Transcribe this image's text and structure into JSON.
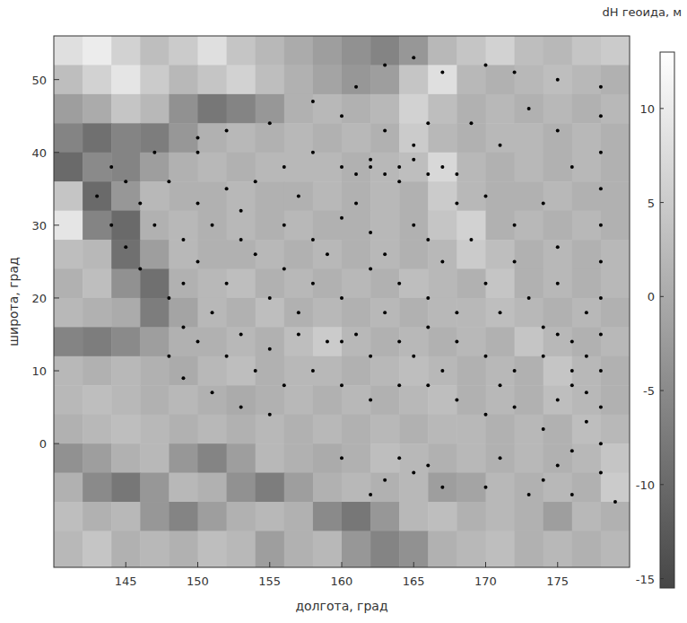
{
  "chart_data": {
    "type": "heatmap",
    "x_label": "долгота, град",
    "y_label": "широта, град",
    "xlim": [
      140,
      180
    ],
    "ylim": [
      -17,
      56
    ],
    "xticks": [
      145,
      150,
      155,
      160,
      165,
      170,
      175
    ],
    "yticks": [
      0,
      10,
      20,
      30,
      40,
      50
    ],
    "x_edges": [
      140,
      142,
      144,
      146,
      148,
      150,
      152,
      154,
      156,
      158,
      160,
      162,
      164,
      166,
      168,
      170,
      172,
      174,
      176,
      178,
      180
    ],
    "y_edges": [
      56,
      52,
      48,
      44,
      40,
      36,
      32,
      28,
      24,
      20,
      16,
      12,
      8,
      4,
      0,
      -4,
      -8,
      -12,
      -17
    ],
    "cells": [
      [
        8,
        10,
        6,
        3,
        5,
        8,
        4,
        2,
        0,
        -2,
        -4,
        -6,
        -3,
        2,
        4,
        6,
        3,
        2,
        4,
        5
      ],
      [
        3,
        6,
        9,
        5,
        2,
        4,
        6,
        3,
        1,
        -1,
        -3,
        -2,
        4,
        8,
        2,
        1,
        2,
        3,
        2,
        1
      ],
      [
        -2,
        0,
        4,
        2,
        -4,
        -8,
        -6,
        -3,
        1,
        2,
        1,
        2,
        6,
        3,
        1,
        2,
        1,
        2,
        1,
        2
      ],
      [
        -6,
        -9,
        -6,
        -7,
        -3,
        1,
        2,
        1,
        2,
        1,
        2,
        1,
        5,
        2,
        1,
        2,
        2,
        1,
        2,
        1
      ],
      [
        -10,
        -5,
        -6,
        -2,
        1,
        2,
        1,
        2,
        2,
        2,
        1,
        2,
        3,
        7,
        2,
        1,
        2,
        1,
        2,
        1
      ],
      [
        4,
        -10,
        -3,
        2,
        1,
        1,
        2,
        1,
        1,
        2,
        1,
        2,
        1,
        5,
        2,
        1,
        1,
        2,
        1,
        1
      ],
      [
        9,
        -6,
        -10,
        1,
        2,
        1,
        2,
        1,
        2,
        1,
        1,
        2,
        1,
        4,
        6,
        1,
        2,
        1,
        2,
        1
      ],
      [
        3,
        2,
        -9,
        -2,
        2,
        1,
        1,
        2,
        1,
        2,
        1,
        2,
        1,
        2,
        5,
        3,
        1,
        2,
        1,
        2
      ],
      [
        1,
        3,
        -4,
        -9,
        1,
        2,
        3,
        1,
        2,
        1,
        2,
        1,
        3,
        2,
        1,
        4,
        1,
        2,
        1,
        2
      ],
      [
        2,
        1,
        0,
        -7,
        -1,
        2,
        1,
        3,
        1,
        2,
        1,
        2,
        1,
        2,
        2,
        3,
        2,
        1,
        2,
        1
      ],
      [
        -6,
        -7,
        -5,
        -2,
        1,
        1,
        2,
        1,
        3,
        5,
        2,
        1,
        2,
        1,
        2,
        1,
        4,
        2,
        1,
        2
      ],
      [
        2,
        1,
        2,
        1,
        0,
        2,
        3,
        1,
        2,
        2,
        1,
        2,
        3,
        2,
        1,
        2,
        1,
        4,
        2,
        1
      ],
      [
        2,
        3,
        2,
        1,
        2,
        1,
        0,
        1,
        2,
        1,
        2,
        1,
        2,
        3,
        1,
        2,
        1,
        3,
        2,
        1
      ],
      [
        1,
        2,
        3,
        2,
        1,
        2,
        1,
        2,
        1,
        2,
        1,
        2,
        1,
        2,
        2,
        1,
        2,
        1,
        3,
        2
      ],
      [
        -4,
        -2,
        1,
        2,
        -3,
        -6,
        -2,
        2,
        1,
        0,
        1,
        3,
        2,
        1,
        2,
        1,
        2,
        1,
        2,
        4
      ],
      [
        1,
        -5,
        -8,
        -3,
        2,
        1,
        -4,
        -7,
        -2,
        1,
        2,
        1,
        2,
        -2,
        -1,
        2,
        1,
        2,
        1,
        5
      ],
      [
        3,
        1,
        2,
        -3,
        -6,
        -2,
        1,
        2,
        1,
        -5,
        -8,
        -3,
        2,
        3,
        1,
        2,
        1,
        -2,
        2,
        1
      ],
      [
        2,
        4,
        1,
        2,
        1,
        3,
        2,
        -2,
        1,
        2,
        -3,
        -6,
        -4,
        1,
        2,
        3,
        1,
        2,
        1,
        2
      ]
    ],
    "colorbar_label": "dH геоида, м",
    "colorbar_range": [
      -15.5,
      13
    ],
    "colorbar_ticks": [
      -15,
      -10,
      -5,
      0,
      5,
      10
    ],
    "points": {
      "color": "#000000",
      "marker": "circle",
      "x": [
        150,
        152,
        155,
        158,
        161,
        163,
        165,
        167,
        170,
        172,
        175,
        178,
        144,
        143,
        144,
        145,
        146,
        148,
        149,
        148,
        149,
        151,
        153,
        155,
        160,
        163,
        165,
        167,
        170,
        173,
        176,
        179,
        162,
        175,
        178,
        178,
        178,
        178,
        178,
        178,
        178,
        178,
        178,
        178,
        178,
        161,
        162,
        163,
        164,
        165,
        166,
        164,
        162,
        160,
        167,
        168,
        165,
        163,
        166,
        160,
        158,
        156,
        154,
        152,
        150,
        148,
        147,
        150,
        153,
        156,
        158,
        160,
        162,
        165,
        168,
        170,
        172,
        174,
        176,
        175,
        173,
        171,
        169,
        175,
        172,
        170,
        168,
        166,
        164,
        162,
        160,
        158,
        156,
        154,
        152,
        150,
        151,
        153,
        155,
        157,
        159,
        160,
        161,
        162,
        164,
        166,
        168,
        170,
        172,
        174,
        176,
        177,
        176,
        175,
        177,
        176,
        174,
        172,
        170,
        168,
        166,
        164,
        162,
        160,
        158,
        156,
        154,
        152,
        150,
        149,
        147,
        149,
        153,
        157,
        159,
        163,
        167,
        171,
        173,
        175,
        177,
        174,
        169,
        166,
        161,
        155,
        157,
        163,
        165,
        167,
        171,
        176,
        177,
        174,
        164,
        166,
        171,
        175,
        151,
        146,
        145
      ],
      "y": [
        42,
        43,
        44,
        47,
        49,
        52,
        53,
        51,
        52,
        51,
        50,
        49,
        38,
        34,
        30,
        27,
        24,
        20,
        16,
        12,
        9,
        7,
        5,
        4,
        -2,
        -5,
        -4,
        -6,
        -6,
        -7,
        -7,
        -8,
        -7,
        -3,
        45,
        40,
        35,
        30,
        25,
        20,
        15,
        10,
        5,
        0,
        -4,
        37,
        38,
        37,
        38,
        39,
        37,
        36,
        39,
        38,
        38,
        37,
        41,
        43,
        44,
        45,
        40,
        38,
        36,
        35,
        33,
        36,
        40,
        40,
        32,
        30,
        28,
        31,
        29,
        30,
        33,
        34,
        30,
        33,
        38,
        43,
        46,
        41,
        44,
        27,
        25,
        22,
        18,
        20,
        22,
        24,
        20,
        22,
        24,
        26,
        22,
        25,
        18,
        15,
        13,
        15,
        14,
        14,
        15,
        12,
        14,
        16,
        14,
        12,
        10,
        12,
        10,
        12,
        8,
        6,
        3,
        -1,
        2,
        5,
        4,
        6,
        8,
        8,
        6,
        8,
        10,
        8,
        10,
        12,
        14,
        22,
        30,
        28,
        28,
        34,
        26,
        26,
        25,
        18,
        20,
        22,
        18,
        16,
        28,
        28,
        33,
        20,
        18,
        18,
        12,
        10,
        8,
        14,
        7,
        -5,
        -2,
        -3,
        -2,
        15,
        30,
        33,
        36
      ]
    }
  }
}
